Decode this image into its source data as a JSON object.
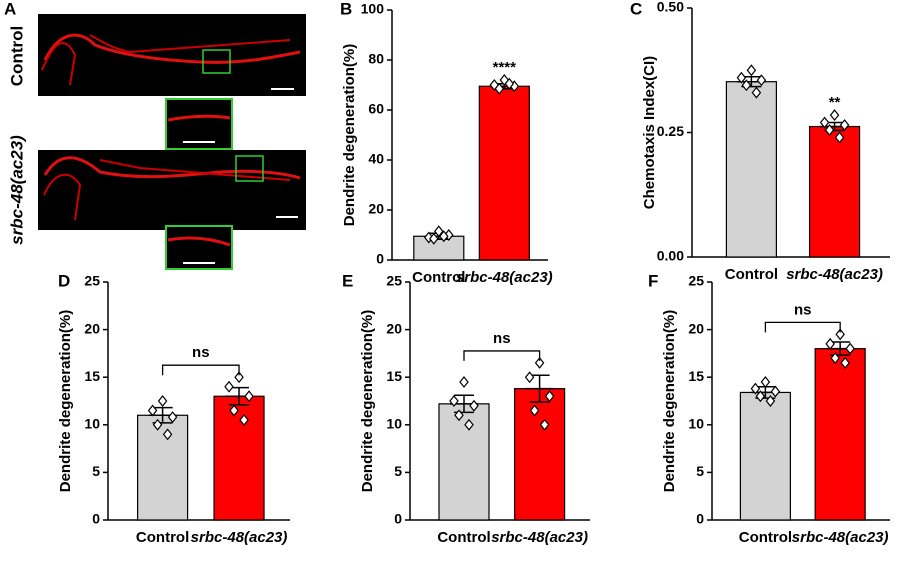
{
  "panel_a": {
    "label": "A",
    "rows": [
      "Control",
      "srbc-48(ac23)"
    ]
  },
  "chart_data": [
    {
      "type": "bar",
      "panel": "B",
      "ylabel": "Dendrite degeneration(%)",
      "categories": [
        "Control",
        "srbc-48(ac23)"
      ],
      "colors": [
        "#d3d3d3",
        "#ff0000"
      ],
      "values": [
        9.5,
        69.5
      ],
      "errors": [
        1.2,
        1.0
      ],
      "points": [
        [
          11.5,
          9,
          10,
          8.5,
          9.5
        ],
        [
          72,
          70,
          69.5,
          68.5,
          70.5
        ]
      ],
      "significance": "****",
      "ylim": [
        0,
        100
      ],
      "yticks": [
        0,
        20,
        40,
        60,
        80,
        100
      ]
    },
    {
      "type": "bar",
      "panel": "C",
      "ylabel": "Chemotaxis Index(CI)",
      "categories": [
        "Control",
        "srbc-48(ac23)"
      ],
      "colors": [
        "#d3d3d3",
        "#ff0000"
      ],
      "values": [
        0.352,
        0.262
      ],
      "errors": [
        0.01,
        0.008
      ],
      "points": [
        [
          0.375,
          0.36,
          0.355,
          0.345,
          0.33
        ],
        [
          0.285,
          0.27,
          0.265,
          0.255,
          0.24
        ]
      ],
      "significance": "**",
      "ylim": [
        0,
        0.5
      ],
      "yticks": [
        {
          "value": 0,
          "label": "0.00"
        },
        {
          "value": 0.25,
          "label": "0.25"
        },
        {
          "value": 0.5,
          "label": "0.50"
        }
      ]
    },
    {
      "type": "bar",
      "panel": "D",
      "ylabel": "Dendrite degeneration(%)",
      "categories": [
        "Control",
        "srbc-48(ac23)"
      ],
      "colors": [
        "#d3d3d3",
        "#ff0000"
      ],
      "values": [
        11,
        13
      ],
      "errors": [
        0.8,
        0.9
      ],
      "points": [
        [
          12.5,
          11.5,
          10.8,
          10,
          9
        ],
        [
          15,
          14,
          13,
          11.5,
          10.5
        ]
      ],
      "bracket": "ns",
      "ylim": [
        0,
        25
      ],
      "yticks": [
        0,
        5,
        10,
        15,
        20,
        25
      ]
    },
    {
      "type": "bar",
      "panel": "E",
      "ylabel": "Dendrite degeneration(%)",
      "categories": [
        "Control",
        "srbc-48(ac23)"
      ],
      "colors": [
        "#d3d3d3",
        "#ff0000"
      ],
      "values": [
        12.2,
        13.8
      ],
      "errors": [
        0.9,
        1.4
      ],
      "points": [
        [
          14.5,
          12.5,
          12,
          11,
          10
        ],
        [
          16.5,
          15,
          13,
          11.5,
          10
        ]
      ],
      "bracket": "ns",
      "ylim": [
        0,
        25
      ],
      "yticks": [
        0,
        5,
        10,
        15,
        20,
        25
      ]
    },
    {
      "type": "bar",
      "panel": "F",
      "ylabel": "Dendrite degeneration(%)",
      "categories": [
        "Control",
        "srbc-48(ac23)"
      ],
      "colors": [
        "#d3d3d3",
        "#ff0000"
      ],
      "values": [
        13.4,
        18
      ],
      "errors": [
        0.6,
        0.7
      ],
      "points": [
        [
          14.5,
          13.8,
          13.5,
          13,
          12.5
        ],
        [
          19.5,
          18.5,
          18,
          17,
          16.5
        ]
      ],
      "bracket": "ns",
      "ylim": [
        0,
        25
      ],
      "yticks": [
        0,
        5,
        10,
        15,
        20,
        25
      ]
    }
  ]
}
